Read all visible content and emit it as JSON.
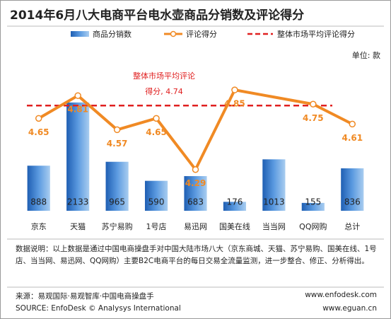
{
  "chart_data": {
    "type": "combo",
    "title": "2014年6月八大电商平台电水壶商品分销数及评论得分",
    "unit_label": "单位: 款",
    "categories": [
      "京东",
      "天猫",
      "苏宁易购",
      "1号店",
      "易迅网",
      "国美在线",
      "当当网",
      "QQ网购",
      "总计"
    ],
    "series": [
      {
        "name": "商品分销数",
        "type": "bar",
        "color": "#2e72c4",
        "values": [
          888,
          2133,
          965,
          590,
          683,
          176,
          1013,
          155,
          836
        ]
      },
      {
        "name": "评论得分",
        "type": "line",
        "axis": "y2",
        "color": "#f08a24",
        "values": [
          4.65,
          4.81,
          4.57,
          4.65,
          4.29,
          4.85,
          null,
          4.75,
          4.61
        ]
      }
    ],
    "reference": {
      "name": "整体市场平均评论得分",
      "axis": "y2",
      "color": "#e02020",
      "value": 4.74,
      "label_lines": [
        "整体市场平均评论",
        "得分, 4.74"
      ]
    },
    "ylim": [
      0,
      2800
    ],
    "y2lim": [
      4.0,
      5.0
    ],
    "note": "数据说明：以上数据是通过中国电商操盘手对中国大陆市场八大（京东商城、天猫、苏宁易购、国美在线、1号店、当当网、易迅网、QQ网购）主要B2C电商平台的每日交易全流量监测，进一步整合、修正、分析得出。",
    "source": "来源：易观国际·易观智库·中国电商操盘手",
    "source_url": "www.enfodesk.com",
    "source_en": "SOURCE: EnfoDesk © Analysys International",
    "source_en_url": "www.eguan.cn"
  }
}
